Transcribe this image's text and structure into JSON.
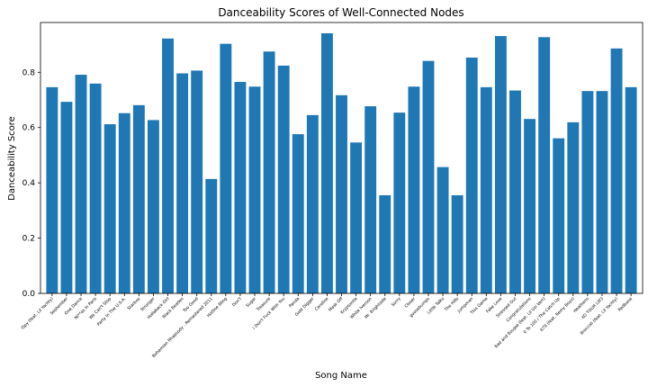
{
  "chart_data": {
    "type": "bar",
    "title": "Danceability Scores of Well-Connected Nodes",
    "xlabel": "Song Name",
    "ylabel": "Danceability Score",
    "ylim": [
      0,
      0.98
    ],
    "yticks": [
      "0.0",
      "0.2",
      "0.4",
      "0.6",
      "0.8"
    ],
    "bar_color": "#1f77b4",
    "grid": false,
    "categories": [
      "iSpy (feat. Lil Yachty)",
      "September",
      "One Dance",
      "Ni**as In Paris",
      "We Can't Stop",
      "Party In The U.S.A.",
      "Starboy",
      "Stronger",
      "Hollaback Girl",
      "Black Beatles",
      "Too Good",
      "Bohemian Rhapsody - Remastered 2011",
      "Hotline Bling",
      "Don't",
      "Sugar",
      "Treasure",
      "I Don't Fuck With You",
      "Panda",
      "Gold Digger",
      "Caroline",
      "Mask Off",
      "Kryptonite",
      "White Iverson",
      "Mr. Brightside",
      "Sorry",
      "Closer",
      "goosebumps",
      "Little Talks",
      "The Hills",
      "Jumpman",
      "This Game",
      "Fake Love",
      "Stressed Out",
      "Congratulations",
      "Bad and Boujee (feat. Lil Uzi Vert)",
      "0 To 100 / The Catch Up",
      "679 (feat. Remy Boyz)",
      "Heathens",
      "XO TOUR Llif3",
      "Broccoli (feat. Lil Yachty)",
      "Redbone"
    ],
    "values": [
      0.746,
      0.693,
      0.791,
      0.759,
      0.612,
      0.652,
      0.681,
      0.627,
      0.922,
      0.796,
      0.806,
      0.414,
      0.903,
      0.765,
      0.748,
      0.875,
      0.824,
      0.576,
      0.645,
      0.941,
      0.717,
      0.546,
      0.677,
      0.355,
      0.654,
      0.748,
      0.841,
      0.457,
      0.355,
      0.853,
      0.746,
      0.931,
      0.734,
      0.631,
      0.927,
      0.561,
      0.619,
      0.732,
      0.732,
      0.886,
      0.746
    ]
  }
}
